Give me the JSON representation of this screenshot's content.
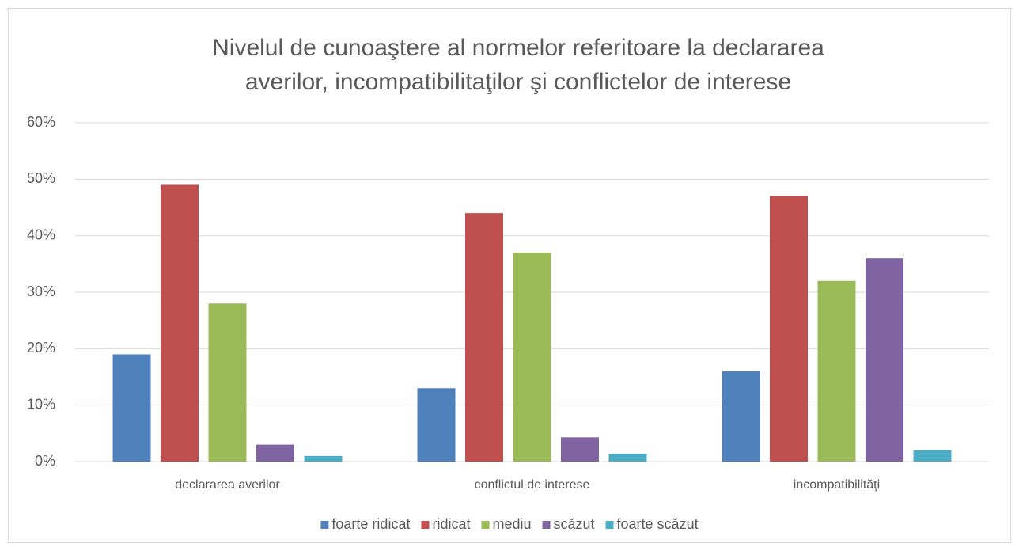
{
  "chart_data": {
    "type": "bar",
    "title": [
      "Nivelul de cunoaştere al normelor referitoare la declararea",
      "averilor, incompatibilitaţilor şi conflictelor de interese"
    ],
    "categories": [
      "declararea averilor",
      "conflictul de interese",
      "incompatibilităţi"
    ],
    "series": [
      {
        "name": "foarte ridicat",
        "color": "#4f81bd",
        "values": [
          19,
          13,
          16
        ]
      },
      {
        "name": "ridicat",
        "color": "#c0504d",
        "values": [
          49,
          44,
          47
        ]
      },
      {
        "name": "mediu",
        "color": "#9bbb59",
        "values": [
          28,
          37,
          32
        ]
      },
      {
        "name": "scăzut",
        "color": "#8064a2",
        "values": [
          3,
          4.3,
          36
        ]
      },
      {
        "name": "foarte scăzut",
        "color": "#4bacc6",
        "values": [
          1,
          1.4,
          2
        ]
      }
    ],
    "ylim": [
      0,
      60
    ],
    "yticks": [
      {
        "value": 0,
        "label": "0%"
      },
      {
        "value": 10,
        "label": "10%"
      },
      {
        "value": 20,
        "label": "20%"
      },
      {
        "value": 30,
        "label": "30%"
      },
      {
        "value": 40,
        "label": "40%"
      },
      {
        "value": 50,
        "label": "50%"
      },
      {
        "value": 60,
        "label": "60%"
      }
    ],
    "grid": true,
    "legend": "bottom"
  }
}
